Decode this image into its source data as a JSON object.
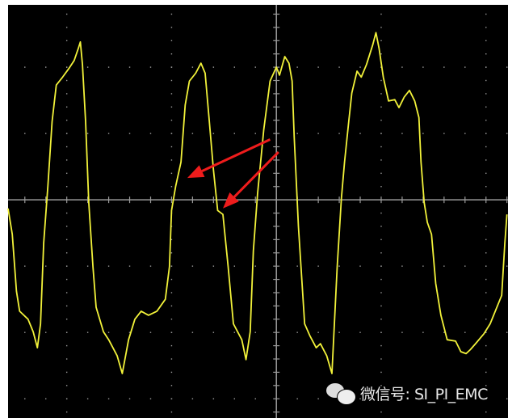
{
  "chart_data": {
    "type": "line",
    "title": "",
    "xlabel": "",
    "ylabel": "",
    "units": "divisions",
    "xlim": [
      -2.56,
      2.21
    ],
    "ylim": [
      -3.29,
      2.94
    ],
    "grid": true,
    "grid_x": [
      -2,
      -1,
      0,
      1,
      2
    ],
    "grid_y": [
      -3,
      -2,
      -1,
      0,
      1,
      2
    ],
    "background_color": "#000000",
    "grid_color": "#9a9a9a",
    "trace_color": "#f2f23a",
    "trace": [
      [
        -2.56,
        -0.13
      ],
      [
        -2.52,
        -0.52
      ],
      [
        -2.48,
        -1.38
      ],
      [
        -2.45,
        -1.68
      ],
      [
        -2.37,
        -1.8
      ],
      [
        -2.32,
        -1.99
      ],
      [
        -2.28,
        -2.23
      ],
      [
        -2.25,
        -1.87
      ],
      [
        -2.22,
        -0.65
      ],
      [
        -2.18,
        0.21
      ],
      [
        -2.14,
        1.18
      ],
      [
        -2.1,
        1.73
      ],
      [
        -2.04,
        1.85
      ],
      [
        -1.98,
        1.98
      ],
      [
        -1.93,
        2.1
      ],
      [
        -1.89,
        2.28
      ],
      [
        -1.87,
        2.38
      ],
      [
        -1.85,
        2.04
      ],
      [
        -1.82,
        1.18
      ],
      [
        -1.79,
        -0.04
      ],
      [
        -1.75,
        -1.01
      ],
      [
        -1.72,
        -1.62
      ],
      [
        -1.65,
        -1.99
      ],
      [
        -1.6,
        -2.11
      ],
      [
        -1.52,
        -2.35
      ],
      [
        -1.47,
        -2.62
      ],
      [
        -1.41,
        -2.11
      ],
      [
        -1.35,
        -1.8
      ],
      [
        -1.29,
        -1.68
      ],
      [
        -1.22,
        -1.74
      ],
      [
        -1.14,
        -1.68
      ],
      [
        -1.06,
        -1.5
      ],
      [
        -1.02,
        -1.01
      ],
      [
        -1.0,
        -0.16
      ],
      [
        -0.96,
        0.21
      ],
      [
        -0.91,
        0.57
      ],
      [
        -0.87,
        1.43
      ],
      [
        -0.83,
        1.79
      ],
      [
        -0.77,
        1.91
      ],
      [
        -0.72,
        2.06
      ],
      [
        -0.68,
        1.91
      ],
      [
        -0.64,
        1.18
      ],
      [
        -0.6,
        0.45
      ],
      [
        -0.56,
        -0.16
      ],
      [
        -0.51,
        -0.22
      ],
      [
        -0.46,
        -1.01
      ],
      [
        -0.41,
        -1.87
      ],
      [
        -0.33,
        -2.11
      ],
      [
        -0.29,
        -2.41
      ],
      [
        -0.25,
        -1.99
      ],
      [
        -0.22,
        -0.77
      ],
      [
        -0.18,
        0.09
      ],
      [
        -0.12,
        1.06
      ],
      [
        -0.06,
        1.79
      ],
      [
        0,
        2.0
      ],
      [
        0.03,
        1.88
      ],
      [
        0.08,
        2.16
      ],
      [
        0.12,
        2.06
      ],
      [
        0.15,
        1.79
      ],
      [
        0.17,
        0.94
      ],
      [
        0.21,
        -0.4
      ],
      [
        0.27,
        -1.87
      ],
      [
        0.32,
        -2.05
      ],
      [
        0.38,
        -2.23
      ],
      [
        0.42,
        -2.17
      ],
      [
        0.48,
        -2.35
      ],
      [
        0.53,
        -2.62
      ],
      [
        0.58,
        -1.01
      ],
      [
        0.62,
        0.02
      ],
      [
        0.65,
        0.57
      ],
      [
        0.69,
        1.18
      ],
      [
        0.72,
        1.61
      ],
      [
        0.77,
        1.94
      ],
      [
        0.81,
        1.85
      ],
      [
        0.86,
        2.04
      ],
      [
        0.92,
        2.34
      ],
      [
        0.95,
        2.52
      ],
      [
        0.98,
        2.28
      ],
      [
        1.02,
        1.85
      ],
      [
        1.07,
        1.49
      ],
      [
        1.13,
        1.51
      ],
      [
        1.17,
        1.39
      ],
      [
        1.22,
        1.55
      ],
      [
        1.27,
        1.65
      ],
      [
        1.32,
        1.49
      ],
      [
        1.36,
        1.24
      ],
      [
        1.38,
        0.57
      ],
      [
        1.41,
        -0.04
      ],
      [
        1.44,
        -0.34
      ],
      [
        1.48,
        -0.52
      ],
      [
        1.52,
        -1.26
      ],
      [
        1.57,
        -1.74
      ],
      [
        1.63,
        -2.11
      ],
      [
        1.71,
        -2.13
      ],
      [
        1.76,
        -2.29
      ],
      [
        1.81,
        -2.32
      ],
      [
        1.85,
        -2.26
      ],
      [
        1.9,
        -2.17
      ],
      [
        1.98,
        -2.02
      ],
      [
        2.04,
        -1.87
      ],
      [
        2.15,
        -1.44
      ],
      [
        2.18,
        -0.65
      ],
      [
        2.2,
        -0.22
      ]
    ],
    "annotations": [
      {
        "type": "arrow",
        "color": "#ee1c1c",
        "from": [
          -0.06,
          0.91
        ],
        "to": [
          -0.85,
          0.33
        ]
      },
      {
        "type": "arrow",
        "color": "#ee1c1c",
        "from": [
          0.02,
          0.72
        ],
        "to": [
          -0.51,
          -0.13
        ]
      }
    ]
  },
  "watermark": {
    "icon": "wechat-icon",
    "text": "微信号: SI_PI_EMC"
  }
}
